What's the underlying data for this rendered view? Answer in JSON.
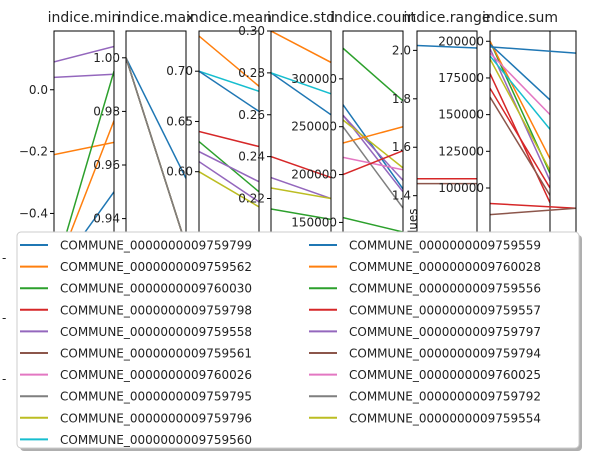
{
  "chart_data": [
    {
      "type": "line",
      "title": "indice.min",
      "ylim": [
        -0.46,
        0.19
      ],
      "yticks": [
        0.0,
        -0.2,
        -0.4
      ],
      "ytick_labels": [
        "0.0",
        "−0.2",
        "−0.4"
      ],
      "series": [
        {
          "name": "COMMUNE_0000000009759558",
          "values": [
            0.04,
            0.05
          ]
        },
        {
          "name": "COMMUNE_0000000009759797",
          "values": [
            0.09,
            0.14
          ]
        },
        {
          "name": "COMMUNE_0000000009759562",
          "values": [
            -0.21,
            -0.17
          ]
        },
        {
          "name": "COMMUNE_0000000009760030",
          "values": [
            -0.6,
            0.06
          ]
        },
        {
          "name": "COMMUNE_0000000009759799",
          "values": [
            -0.6,
            -0.33
          ]
        },
        {
          "name": "COMMUNE_0000000009760028",
          "values": [
            -0.6,
            -0.1
          ]
        }
      ]
    },
    {
      "type": "line",
      "title": "indice.max",
      "ylim": [
        0.935,
        1.01
      ],
      "yticks": [
        1.0,
        0.98,
        0.96,
        0.94
      ],
      "ytick_labels": [
        "1.00",
        "0.98",
        "0.96",
        "0.94"
      ],
      "series": [
        {
          "name": "COMMUNE_0000000009759799",
          "values": [
            1.0,
            0.955
          ]
        },
        {
          "name": "COMMUNE_0000000009759562",
          "values": [
            1.0,
            0.93
          ]
        },
        {
          "name": "COMMUNE_0000000009760030",
          "values": [
            1.0,
            0.93
          ]
        },
        {
          "name": "COMMUNE_0000000009759558",
          "values": [
            1.0,
            0.93
          ]
        },
        {
          "name": "COMMUNE_0000000009759795",
          "values": [
            1.0,
            0.93
          ]
        },
        {
          "name": "COMMUNE_0000000009759796",
          "values": [
            1.0,
            0.93
          ]
        },
        {
          "name": "COMMUNE_0000000009759794",
          "values": [
            1.0,
            0.93
          ]
        },
        {
          "name": "COMMUNE_0000000009759792",
          "values": [
            1.0,
            0.93
          ]
        }
      ]
    },
    {
      "type": "line",
      "title": "indice.mean",
      "ylim": [
        0.54,
        0.74
      ],
      "yticks": [
        0.7,
        0.65,
        0.6
      ],
      "ytick_labels": [
        "0.70",
        "0.65",
        "0.60"
      ],
      "series": [
        {
          "name": "COMMUNE_0000000009759562",
          "values": [
            0.735,
            0.685
          ]
        },
        {
          "name": "COMMUNE_0000000009759560",
          "values": [
            0.7,
            0.68
          ]
        },
        {
          "name": "COMMUNE_0000000009759799",
          "values": [
            0.7,
            0.66
          ]
        },
        {
          "name": "COMMUNE_0000000009759798",
          "values": [
            0.64,
            0.625
          ]
        },
        {
          "name": "COMMUNE_0000000009760030",
          "values": [
            0.63,
            0.58
          ]
        },
        {
          "name": "COMMUNE_0000000009759558",
          "values": [
            0.62,
            0.59
          ]
        },
        {
          "name": "COMMUNE_0000000009759797",
          "values": [
            0.61,
            0.57
          ]
        },
        {
          "name": "COMMUNE_0000000009759796",
          "values": [
            0.6,
            0.565
          ]
        }
      ]
    },
    {
      "type": "line",
      "title": "indice.std",
      "ylim": [
        0.204,
        0.3
      ],
      "yticks": [
        0.3,
        0.28,
        0.26,
        0.24,
        0.22
      ],
      "ytick_labels": [
        "0.30",
        "0.28",
        "0.26",
        "0.24",
        "0.22"
      ],
      "series": [
        {
          "name": "COMMUNE_0000000009759562",
          "values": [
            0.3,
            0.285
          ]
        },
        {
          "name": "COMMUNE_0000000009759799",
          "values": [
            0.28,
            0.26
          ]
        },
        {
          "name": "COMMUNE_0000000009759560",
          "values": [
            0.28,
            0.27
          ]
        },
        {
          "name": "COMMUNE_0000000009759798",
          "values": [
            0.24,
            0.23
          ]
        },
        {
          "name": "COMMUNE_0000000009759558",
          "values": [
            0.23,
            0.22
          ]
        },
        {
          "name": "COMMUNE_0000000009759796",
          "values": [
            0.225,
            0.22
          ]
        },
        {
          "name": "COMMUNE_0000000009760030",
          "values": [
            0.215,
            0.21
          ]
        }
      ]
    },
    {
      "type": "line",
      "title": "indice.count",
      "ylim": [
        140000,
        350000
      ],
      "yticks": [
        300000,
        250000,
        200000,
        150000
      ],
      "ytick_labels": [
        "300000",
        "250000",
        "200000",
        "150000"
      ],
      "series": [
        {
          "name": "COMMUNE_0000000009760030",
          "values": [
            332000,
            277000
          ]
        },
        {
          "name": "COMMUNE_0000000009759799",
          "values": [
            273000,
            185000
          ]
        },
        {
          "name": "COMMUNE_0000000009759558",
          "values": [
            262000,
            182000
          ]
        },
        {
          "name": "COMMUNE_0000000009759797",
          "values": [
            262000,
            194000
          ]
        },
        {
          "name": "COMMUNE_0000000009759796",
          "values": [
            257000,
            207000
          ]
        },
        {
          "name": "COMMUNE_0000000009759795",
          "values": [
            250000,
            165000
          ]
        },
        {
          "name": "COMMUNE_0000000009760028",
          "values": [
            233000,
            250000
          ]
        },
        {
          "name": "COMMUNE_0000000009760025",
          "values": [
            218000,
            205000
          ]
        },
        {
          "name": "COMMUNE_0000000009759798",
          "values": [
            200000,
            225000
          ]
        },
        {
          "name": "COMMUNE_0000000009759556",
          "values": [
            155000,
            140000
          ]
        }
      ]
    },
    {
      "type": "line",
      "title": "indice.range",
      "ylim": [
        1.25,
        2.08
      ],
      "yticks": [
        2.0,
        1.8,
        1.6,
        1.4
      ],
      "ytick_labels": [
        "2.0",
        "1.8",
        "1.6",
        "1.4"
      ],
      "series": [
        {
          "name": "COMMUNE_0000000009759559",
          "values": [
            2.02,
            2.01
          ]
        },
        {
          "name": "COMMUNE_0000000009759557",
          "values": [
            1.47,
            1.47
          ]
        },
        {
          "name": "COMMUNE_0000000009759561",
          "values": [
            1.45,
            1.45
          ]
        }
      ]
    },
    {
      "type": "line",
      "title": "indice.sum",
      "ylim": [
        70000,
        207000
      ],
      "yticks": [
        200000,
        175000,
        150000,
        125000,
        100000
      ],
      "ytick_labels": [
        "200000",
        "175000",
        "150000",
        "125000",
        "100000"
      ],
      "series": [
        {
          "name": "COMMUNE_0000000009760030",
          "values": [
            200000,
            110000
          ]
        },
        {
          "name": "COMMUNE_0000000009760028",
          "values": [
            200000,
            120000
          ]
        },
        {
          "name": "COMMUNE_0000000009759797",
          "values": [
            195000,
            105000
          ]
        },
        {
          "name": "COMMUNE_0000000009759799",
          "values": [
            198000,
            160000
          ]
        },
        {
          "name": "COMMUNE_0000000009759560",
          "values": [
            190000,
            140000
          ]
        },
        {
          "name": "COMMUNE_0000000009760026",
          "values": [
            192000,
            150000
          ]
        },
        {
          "name": "COMMUNE_0000000009759796",
          "values": [
            188000,
            112000
          ]
        },
        {
          "name": "COMMUNE_0000000009759798",
          "values": [
            168000,
            100000
          ]
        },
        {
          "name": "COMMUNE_0000000009759557",
          "values": [
            178000,
            90000
          ]
        },
        {
          "name": "COMMUNE_0000000009759561",
          "values": [
            162000,
            95000
          ]
        }
      ]
    },
    {
      "type": "line",
      "title": "",
      "ylim": [
        80000,
        207000
      ],
      "yticks": [],
      "ytick_labels": [],
      "series": [
        {
          "name": "COMMUNE_0000000009759559",
          "values": [
            197000,
            193000
          ]
        },
        {
          "name": "COMMUNE_0000000009759798",
          "values": [
            98000,
            95000
          ]
        },
        {
          "name": "COMMUNE_0000000009759561",
          "values": [
            91000,
            95000
          ]
        }
      ]
    }
  ],
  "ylabel_fragment": "values",
  "left_dashes": [
    "-",
    "-",
    "-"
  ],
  "legend": {
    "placement": "lower-center",
    "columns": 2,
    "entries": [
      {
        "label": "COMMUNE_0000000009759799",
        "color": "#1f77b4"
      },
      {
        "label": "COMMUNE_0000000009759562",
        "color": "#ff7f0e"
      },
      {
        "label": "COMMUNE_0000000009760030",
        "color": "#2ca02c"
      },
      {
        "label": "COMMUNE_0000000009759798",
        "color": "#d62728"
      },
      {
        "label": "COMMUNE_0000000009759558",
        "color": "#9467bd"
      },
      {
        "label": "COMMUNE_0000000009759561",
        "color": "#8c564b"
      },
      {
        "label": "COMMUNE_0000000009760026",
        "color": "#e377c2"
      },
      {
        "label": "COMMUNE_0000000009759795",
        "color": "#7f7f7f"
      },
      {
        "label": "COMMUNE_0000000009759796",
        "color": "#bcbd22"
      },
      {
        "label": "COMMUNE_0000000009759560",
        "color": "#17becf"
      },
      {
        "label": "COMMUNE_0000000009759559",
        "color": "#1f77b4"
      },
      {
        "label": "COMMUNE_0000000009760028",
        "color": "#ff7f0e"
      },
      {
        "label": "COMMUNE_0000000009759556",
        "color": "#2ca02c"
      },
      {
        "label": "COMMUNE_0000000009759557",
        "color": "#d62728"
      },
      {
        "label": "COMMUNE_0000000009759797",
        "color": "#9467bd"
      },
      {
        "label": "COMMUNE_0000000009759794",
        "color": "#8c564b"
      },
      {
        "label": "COMMUNE_0000000009760025",
        "color": "#e377c2"
      },
      {
        "label": "COMMUNE_0000000009759792",
        "color": "#7f7f7f"
      },
      {
        "label": "COMMUNE_0000000009759554",
        "color": "#bcbd22"
      }
    ]
  }
}
